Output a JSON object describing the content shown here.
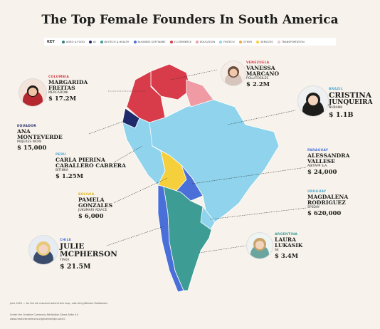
{
  "title": "The Top Female Founders In South America",
  "legend": {
    "key_label": "KEY",
    "items": [
      {
        "label": "AGRO & FOOD",
        "color": "#2f7f7a"
      },
      {
        "label": "AI",
        "color": "#1f2a6b"
      },
      {
        "label": "BIOTECH & HEALTH",
        "color": "#3d9c94"
      },
      {
        "label": "BUSINESS SOFTWARE",
        "color": "#4a6fd8"
      },
      {
        "label": "E-COMMERCE",
        "color": "#d83b4a"
      },
      {
        "label": "EDUCATION",
        "color": "#f09aa4"
      },
      {
        "label": "FINTECH",
        "color": "#8fd3ec"
      },
      {
        "label": "OTHER",
        "color": "#f2a541"
      },
      {
        "label": "SERVICES",
        "color": "#f5cf3c"
      },
      {
        "label": "TRANSPORTATION",
        "color": "#e9c7d6"
      }
    ]
  },
  "founders": {
    "colombia": {
      "country": "COLOMBIA",
      "name1": "MARGARIDA",
      "name2": "FREITAS",
      "company": "MERCADONI",
      "value": "$ 17.2M"
    },
    "venezuela": {
      "country": "VENEZUELA",
      "name1": "VANESSA",
      "name2": "MARCANO",
      "company": "POLLITOSILES",
      "value": "$ 2.2M"
    },
    "brazil": {
      "country": "BRAZIL",
      "name1": "CRISTINA",
      "name2": "JUNQUEIRA",
      "company": "NUBANK",
      "value": "$ 1.1B"
    },
    "ecuador": {
      "country": "EQUADOR",
      "name1": "ANA",
      "name2": "MONTEVERDE",
      "company": "MUJERES WOW",
      "value": "$ 15,000"
    },
    "peru": {
      "country": "PERU",
      "name1": "CARLA PIERINA",
      "name2": "CABALLERO CABRERA",
      "company": "BITINKA",
      "value": "$ 1.25M"
    },
    "paraguay": {
      "country": "PARAGUAY",
      "name1": "ALESSANDRA",
      "name2": "VALLESE",
      "company": "ABITAPP S.A.",
      "value": "$ 24,000"
    },
    "bolivia": {
      "country": "BOLIVIA",
      "name1": "PAMELA",
      "name2": "GONZALES",
      "company": "JUKUMARI ADVICE",
      "value": "$ 6,000"
    },
    "uruguay": {
      "country": "URUGUAY",
      "name1": "MAGDALENA",
      "name2": "RODRIGUEZ",
      "company": "SPSDAY",
      "value": "$ 620,000"
    },
    "chile": {
      "country": "CHILE",
      "name1": "JULIE",
      "name2": "MCPHERSON",
      "company": "TIAXA",
      "value": "$ 21.5M"
    },
    "argentina": {
      "country": "ARGENTINA",
      "name1": "LAURA",
      "name2": "LUKASIK",
      "company": "S4",
      "value": "$ 3.4M"
    }
  },
  "footer": {
    "line1": "June 2023 — for the full research behind this map, visit bit.ly/Women-Trailblazers",
    "line2": "Under the Creative Commons Attribution-Share Alike 4.0",
    "line3": "www.creativecommons.org/licenses/by-sa/4.0"
  }
}
